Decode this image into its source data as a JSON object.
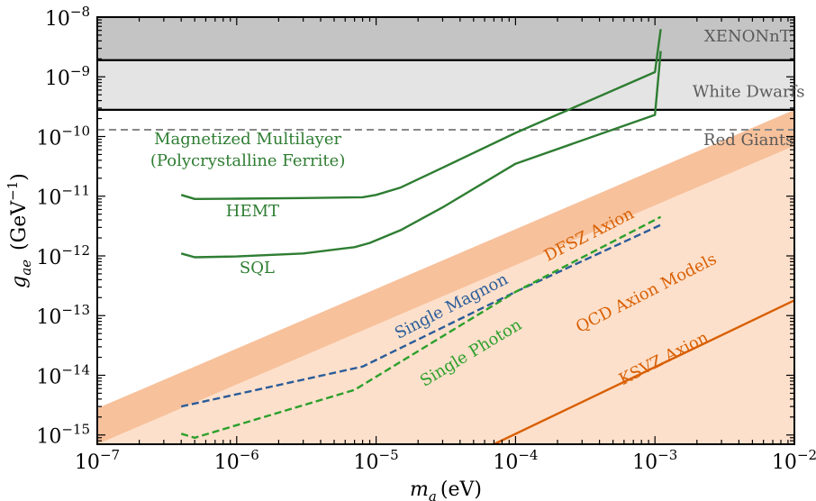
{
  "chart_data": {
    "type": "line",
    "xscale": "log",
    "yscale": "log",
    "xlim": [
      1e-07,
      0.01
    ],
    "ylim": [
      7e-16,
      1e-08
    ],
    "xlabel": {
      "main": "m",
      "sub": "a",
      "unit": "(eV)"
    },
    "ylabel": {
      "main": "g",
      "sub": "ae",
      "unit": "(GeV",
      "unit_sup": "−1",
      "unit_close": ")"
    },
    "x_ticks": [
      {
        "value": 1e-07,
        "base": "10",
        "exp": "−7"
      },
      {
        "value": 1e-06,
        "base": "10",
        "exp": "−6"
      },
      {
        "value": 1e-05,
        "base": "10",
        "exp": "−5"
      },
      {
        "value": 0.0001,
        "base": "10",
        "exp": "−4"
      },
      {
        "value": 0.001,
        "base": "10",
        "exp": "−3"
      },
      {
        "value": 0.01,
        "base": "10",
        "exp": "−2"
      }
    ],
    "y_ticks": [
      {
        "value": 1e-08,
        "base": "10",
        "exp": "−8"
      },
      {
        "value": 1e-09,
        "base": "10",
        "exp": "−9"
      },
      {
        "value": 1e-10,
        "base": "10",
        "exp": "−10"
      },
      {
        "value": 1e-11,
        "base": "10",
        "exp": "−11"
      },
      {
        "value": 1e-12,
        "base": "10",
        "exp": "−12"
      },
      {
        "value": 1e-13,
        "base": "10",
        "exp": "−13"
      },
      {
        "value": 1e-14,
        "base": "10",
        "exp": "−14"
      },
      {
        "value": 1e-15,
        "base": "10",
        "exp": "−15"
      }
    ],
    "limits": [
      {
        "name": "XENONnT",
        "value": 1.9e-09,
        "fill_to": 1e-08,
        "color": "#c4c4c4",
        "line": "solid"
      },
      {
        "name": "White Dwarfs",
        "value": 2.8e-10,
        "fill_to": 1.9e-09,
        "color": "#e4e4e4",
        "line": "solid"
      },
      {
        "name": "Red Giants",
        "value": 1.3e-10,
        "color": "#888888",
        "line": "dashed"
      }
    ],
    "bands": [
      {
        "name": "DFSZ Axion",
        "color": "#f7c19b",
        "upper": [
          [
            1e-07,
            2.8e-15
          ],
          [
            0.01,
            2.8e-10
          ]
        ],
        "lower": [
          [
            1e-07,
            7e-16
          ],
          [
            0.01,
            7e-11
          ]
        ]
      },
      {
        "name": "QCD Axion Models",
        "color": "#fde0cb",
        "upper": [
          [
            1e-07,
            7e-16
          ],
          [
            0.01,
            7e-11
          ]
        ],
        "lower": [
          [
            1e-07,
            7e-16
          ],
          [
            0.01,
            7e-16
          ]
        ]
      }
    ],
    "series": [
      {
        "name": "HEMT",
        "color": "#2e7d32",
        "dash": false,
        "points": [
          [
            4e-07,
            1.05e-11
          ],
          [
            5e-07,
            9e-12
          ],
          [
            1e-06,
            9.1e-12
          ],
          [
            3e-06,
            9.3e-12
          ],
          [
            8e-06,
            9.6e-12
          ],
          [
            1e-05,
            1.05e-11
          ],
          [
            1.5e-05,
            1.4e-11
          ],
          [
            3e-05,
            3e-11
          ],
          [
            0.0001,
            1.15e-10
          ],
          [
            0.001,
            1.2e-09
          ],
          [
            0.0011,
            6.3e-09
          ]
        ]
      },
      {
        "name": "SQL",
        "color": "#2e7d32",
        "dash": false,
        "points": [
          [
            4e-07,
            1.1e-12
          ],
          [
            5e-07,
            9.5e-13
          ],
          [
            1e-06,
            9.8e-13
          ],
          [
            3e-06,
            1.1e-12
          ],
          [
            7e-06,
            1.4e-12
          ],
          [
            9e-06,
            1.65e-12
          ],
          [
            1.5e-05,
            2.7e-12
          ],
          [
            3e-05,
            6.5e-12
          ],
          [
            0.0001,
            3.5e-11
          ],
          [
            0.001,
            2.3e-10
          ],
          [
            0.0011,
            2.7e-09
          ]
        ]
      },
      {
        "name": "Single Magnon",
        "color": "#2a5c9a",
        "dash": true,
        "points": [
          [
            4e-07,
            3e-15
          ],
          [
            8e-06,
            1.4e-14
          ],
          [
            0.0001,
            2.5e-13
          ],
          [
            0.0011,
            3.3e-12
          ]
        ]
      },
      {
        "name": "Single Photon",
        "color": "#2ca02c",
        "dash": true,
        "points": [
          [
            4e-07,
            1.05e-15
          ],
          [
            5e-07,
            9e-16
          ],
          [
            7e-06,
            5.7e-15
          ],
          [
            0.0001,
            2.5e-13
          ],
          [
            0.0011,
            4.5e-12
          ]
        ]
      },
      {
        "name": "KSVZ Axion",
        "color": "#d95f02",
        "dash": false,
        "points": [
          [
            7e-05,
            7e-16
          ],
          [
            0.01,
            1.8e-13
          ]
        ]
      }
    ],
    "annotations": [
      {
        "key": "xenon",
        "lines": [
          "XENONnT"
        ],
        "color": "#5a5a5a",
        "x": 0.0046,
        "y": 3.9e-09,
        "rotate": 0,
        "anchor": "middle"
      },
      {
        "key": "wd",
        "lines": [
          "White Dwarfs"
        ],
        "color": "#5a5a5a",
        "x": 0.0047,
        "y": 4.6e-10,
        "rotate": 0,
        "anchor": "middle"
      },
      {
        "key": "rg",
        "lines": [
          "Red Giants"
        ],
        "color": "#5a5a5a",
        "x": 0.0047,
        "y": 7.2e-11,
        "rotate": 0,
        "anchor": "middle"
      },
      {
        "key": "mm",
        "lines": [
          "Magnetized Multilayer",
          "(Polycrystalline Ferrite)"
        ],
        "color": "#2e7d32",
        "x": 1.2e-06,
        "y": 7.5e-11,
        "rotate": 0,
        "anchor": "middle"
      },
      {
        "key": "hemt",
        "lines": [
          "HEMT"
        ],
        "color": "#2e7d32",
        "x": 1.3e-06,
        "y": 4.6e-12,
        "rotate": 0,
        "anchor": "middle"
      },
      {
        "key": "sql",
        "lines": [
          "SQL"
        ],
        "color": "#2e7d32",
        "x": 1.4e-06,
        "y": 5.2e-13,
        "rotate": 0,
        "anchor": "middle"
      },
      {
        "key": "dfsz",
        "lines": [
          "DFSZ Axion"
        ],
        "color": "#d95f02",
        "x": 0.00035,
        "y": 1.9e-12,
        "rotate": -27,
        "anchor": "middle"
      },
      {
        "key": "qcd",
        "lines": [
          "QCD Axion Models"
        ],
        "color": "#d95f02",
        "x": 0.0009,
        "y": 2e-13,
        "rotate": -27,
        "anchor": "middle"
      },
      {
        "key": "ksvz",
        "lines": [
          "KSVZ Axion"
        ],
        "color": "#d95f02",
        "x": 0.0012,
        "y": 1.6e-14,
        "rotate": -27,
        "anchor": "middle"
      },
      {
        "key": "magnon",
        "lines": [
          "Single Magnon"
        ],
        "color": "#2a5c9a",
        "x": 3.6e-05,
        "y": 1.2e-13,
        "rotate": -27,
        "anchor": "middle"
      },
      {
        "key": "photon",
        "lines": [
          "Single Photon"
        ],
        "color": "#2ca02c",
        "x": 5e-05,
        "y": 2e-14,
        "rotate": -31,
        "anchor": "middle"
      }
    ]
  }
}
